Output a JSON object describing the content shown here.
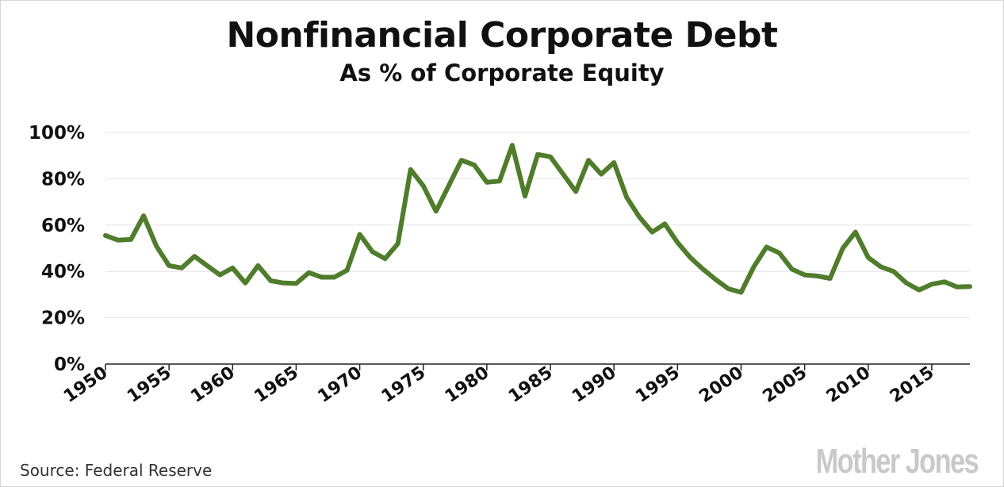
{
  "chart_data": {
    "type": "line",
    "title": "Nonfinancial Corporate Debt",
    "subtitle": "As % of Corporate Equity",
    "xlabel": "",
    "ylabel": "",
    "ylim": [
      0,
      100
    ],
    "xlim": [
      1950,
      2018
    ],
    "y_ticks": [
      0,
      20,
      40,
      60,
      80,
      100
    ],
    "y_tick_labels": [
      "0%",
      "20%",
      "40%",
      "60%",
      "80%",
      "100%"
    ],
    "x_ticks": [
      1950,
      1955,
      1960,
      1965,
      1970,
      1975,
      1980,
      1985,
      1990,
      1995,
      2000,
      2005,
      2010,
      2015
    ],
    "x_tick_labels": [
      "1950",
      "1955",
      "1960",
      "1965",
      "1970",
      "1975",
      "1980",
      "1985",
      "1990",
      "1995",
      "2000",
      "2005",
      "2010",
      "2015"
    ],
    "grid": true,
    "line_color": "#4f7d2c",
    "series": [
      {
        "x": [
          1950,
          1951,
          1952,
          1953,
          1954,
          1955,
          1956,
          1957,
          1958,
          1959,
          1960,
          1961,
          1962,
          1963,
          1964,
          1965,
          1966,
          1967,
          1968,
          1969,
          1970,
          1971,
          1972,
          1973,
          1974,
          1975,
          1976,
          1977,
          1978,
          1979,
          1980,
          1981,
          1982,
          1983,
          1984,
          1985,
          1986,
          1987,
          1988,
          1989,
          1990,
          1991,
          1992,
          1993,
          1994,
          1995,
          1996,
          1997,
          1998,
          1999,
          2000,
          2001,
          2002,
          2003,
          2004,
          2005,
          2006,
          2007,
          2008,
          2009,
          2010,
          2011,
          2012,
          2013,
          2014,
          2015,
          2016,
          2017,
          2018
        ],
        "values": [
          55.5,
          53.5,
          53.8,
          64,
          51,
          42.5,
          41.5,
          46.5,
          42.5,
          38.5,
          41.5,
          35,
          42.5,
          36,
          35,
          34.8,
          39.5,
          37.5,
          37.5,
          40.5,
          56,
          48.5,
          45.5,
          52,
          84,
          77,
          66,
          77,
          88,
          86,
          78.5,
          79,
          94.5,
          72.5,
          90.5,
          89.5,
          82,
          74.5,
          88,
          82,
          87,
          72,
          63.5,
          57,
          60.5,
          52.5,
          46,
          41,
          36.5,
          32.5,
          31,
          42,
          50.5,
          48,
          41,
          38.5,
          38,
          37,
          50,
          57,
          46,
          42,
          40,
          35,
          32,
          34.5,
          35.5,
          33.3,
          33.5
        ]
      }
    ]
  },
  "source": "Source: Federal Reserve",
  "logo": "Mother Jones"
}
